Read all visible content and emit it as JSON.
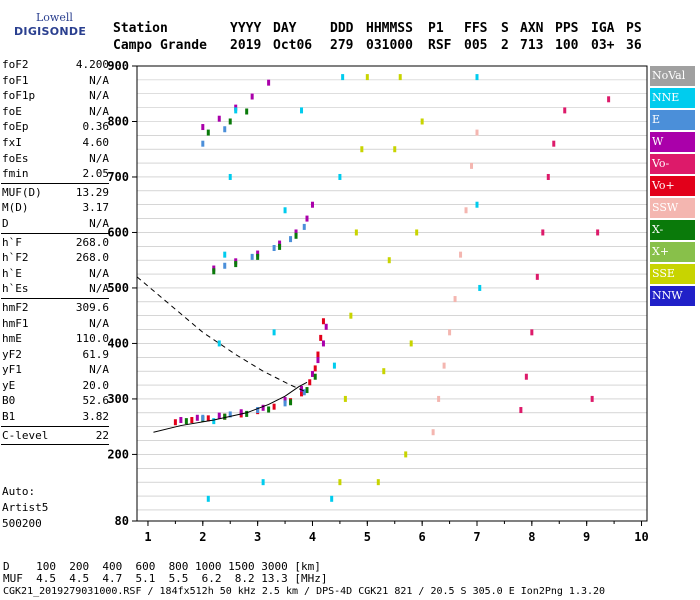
{
  "logo": {
    "line1": "Lowell",
    "line2": "DIGISONDE"
  },
  "header": {
    "row1": [
      "Station",
      "YYYY",
      "DAY",
      "DDD",
      "HHMMSS",
      "P1",
      "FFS",
      "S",
      "AXN",
      "PPS",
      "IGA",
      "PS"
    ],
    "row2": [
      "Campo Grande",
      "2019",
      "Oct06",
      "279",
      "031000",
      "RSF",
      "005",
      "2",
      "713",
      "100",
      "03+",
      "36"
    ]
  },
  "params": {
    "group1": [
      {
        "label": "foF2",
        "value": "4.200"
      },
      {
        "label": "foF1",
        "value": "N/A"
      },
      {
        "label": "foF1p",
        "value": "N/A"
      },
      {
        "label": "foE",
        "value": "N/A"
      },
      {
        "label": "foEp",
        "value": "0.36"
      },
      {
        "label": "fxI",
        "value": "4.60"
      },
      {
        "label": "foEs",
        "value": "N/A"
      },
      {
        "label": "fmin",
        "value": "2.05"
      }
    ],
    "group2": [
      {
        "label": "MUF(D)",
        "value": "13.29"
      },
      {
        "label": "M(D)",
        "value": "3.17"
      },
      {
        "label": "D",
        "value": "N/A"
      }
    ],
    "group3": [
      {
        "label": "h`F",
        "value": "268.0"
      },
      {
        "label": "h`F2",
        "value": "268.0"
      },
      {
        "label": "h`E",
        "value": "N/A"
      },
      {
        "label": "h`Es",
        "value": "N/A"
      }
    ],
    "group4": [
      {
        "label": "hmF2",
        "value": "309.6"
      },
      {
        "label": "hmF1",
        "value": "N/A"
      },
      {
        "label": "hmE",
        "value": "110.0"
      },
      {
        "label": "yF2",
        "value": "61.9"
      },
      {
        "label": "yF1",
        "value": "N/A"
      },
      {
        "label": "yE",
        "value": "20.0"
      },
      {
        "label": "B0",
        "value": "52.6"
      },
      {
        "label": "B1",
        "value": "3.82"
      }
    ],
    "group5": [
      {
        "label": "C-level",
        "value": "22"
      }
    ]
  },
  "auto": [
    "Auto:",
    "Artist5",
    "500200"
  ],
  "footer": {
    "d_row": "D    100  200  400  600  800 1000 1500 3000 [km]",
    "muf_row": "MUF  4.5  4.5  4.7  5.1  5.5  6.2  8.2 13.3 [MHz]",
    "info_row": "CGK21_2019279031000.RSF / 184fx512h 50 kHz 2.5 km / DPS-4D CGK21 821 / 20.5 S 305.0 E Ion2Png 1.3.20"
  },
  "legend": [
    {
      "label": "NoVal",
      "color": "#a0a0a0"
    },
    {
      "label": "NNE",
      "color": "#00ccee"
    },
    {
      "label": "E",
      "color": "#4b8fd9"
    },
    {
      "label": "W",
      "color": "#aa00aa"
    },
    {
      "label": "Vo-",
      "color": "#dd1a6a"
    },
    {
      "label": "Vo+",
      "color": "#e2001a"
    },
    {
      "label": "SSW",
      "color": "#f4b6b0"
    },
    {
      "label": "X-",
      "color": "#0a7a0a"
    },
    {
      "label": "X+",
      "color": "#88c04a"
    },
    {
      "label": "SSE",
      "color": "#c8d400"
    },
    {
      "label": "NNW",
      "color": "#2020c8"
    }
  ],
  "chart_data": {
    "type": "scatter",
    "title": "",
    "xlabel": "",
    "ylabel": "",
    "xlim": [
      0.8,
      10.1
    ],
    "ylim": [
      80,
      900
    ],
    "x_ticks": [
      1,
      2,
      3,
      4,
      5,
      6,
      7,
      8,
      9,
      10
    ],
    "y_ticks": [
      80,
      200,
      300,
      400,
      500,
      600,
      700,
      800,
      900
    ],
    "grid": "horizontal every 25 km",
    "series": [
      {
        "color": "#e2001a",
        "points": [
          [
            1.5,
            258
          ],
          [
            1.8,
            262
          ],
          [
            2.1,
            265
          ],
          [
            2.4,
            268
          ],
          [
            2.7,
            272
          ],
          [
            3.0,
            278
          ],
          [
            3.3,
            286
          ],
          [
            3.6,
            296
          ],
          [
            3.8,
            310
          ],
          [
            3.95,
            330
          ],
          [
            4.05,
            355
          ],
          [
            4.1,
            380
          ],
          [
            4.15,
            410
          ],
          [
            4.2,
            440
          ]
        ]
      },
      {
        "color": "#aa00aa",
        "points": [
          [
            1.6,
            262
          ],
          [
            1.9,
            266
          ],
          [
            2.3,
            270
          ],
          [
            2.7,
            276
          ],
          [
            3.1,
            284
          ],
          [
            3.5,
            298
          ],
          [
            3.8,
            318
          ],
          [
            4.0,
            345
          ],
          [
            4.1,
            370
          ],
          [
            4.2,
            400
          ],
          [
            4.25,
            430
          ],
          [
            2.2,
            535
          ],
          [
            2.6,
            548
          ],
          [
            3.0,
            562
          ],
          [
            3.4,
            580
          ],
          [
            3.7,
            600
          ],
          [
            3.9,
            625
          ],
          [
            4.0,
            650
          ],
          [
            2.0,
            790
          ],
          [
            2.3,
            805
          ],
          [
            2.6,
            825
          ],
          [
            2.9,
            845
          ],
          [
            3.2,
            870
          ]
        ]
      },
      {
        "color": "#0a7a0a",
        "points": [
          [
            1.7,
            260
          ],
          [
            2.0,
            264
          ],
          [
            2.4,
            268
          ],
          [
            2.8,
            273
          ],
          [
            3.2,
            281
          ],
          [
            3.6,
            294
          ],
          [
            3.9,
            316
          ],
          [
            4.05,
            340
          ],
          [
            2.2,
            530
          ],
          [
            2.6,
            543
          ],
          [
            3.0,
            556
          ],
          [
            3.4,
            574
          ],
          [
            3.7,
            594
          ],
          [
            2.1,
            780
          ],
          [
            2.5,
            800
          ],
          [
            2.8,
            818
          ]
        ]
      },
      {
        "color": "#4b8fd9",
        "points": [
          [
            2.0,
            266
          ],
          [
            2.5,
            272
          ],
          [
            3.0,
            280
          ],
          [
            3.5,
            292
          ],
          [
            3.85,
            312
          ],
          [
            2.4,
            540
          ],
          [
            2.9,
            556
          ],
          [
            3.3,
            572
          ],
          [
            3.6,
            588
          ],
          [
            3.85,
            610
          ],
          [
            2.0,
            760
          ],
          [
            2.4,
            786
          ]
        ]
      },
      {
        "color": "#00ccee",
        "points": [
          [
            2.1,
            120
          ],
          [
            2.2,
            260
          ],
          [
            2.3,
            400
          ],
          [
            2.4,
            560
          ],
          [
            2.5,
            700
          ],
          [
            2.6,
            820
          ],
          [
            3.1,
            150
          ],
          [
            3.3,
            420
          ],
          [
            3.5,
            640
          ],
          [
            3.8,
            820
          ],
          [
            4.35,
            120
          ],
          [
            4.4,
            360
          ],
          [
            4.5,
            700
          ],
          [
            4.55,
            880
          ],
          [
            7.0,
            650
          ],
          [
            7.05,
            500
          ],
          [
            7.0,
            880
          ]
        ]
      },
      {
        "color": "#c8d400",
        "points": [
          [
            4.5,
            150
          ],
          [
            4.6,
            300
          ],
          [
            4.7,
            450
          ],
          [
            4.8,
            600
          ],
          [
            4.9,
            750
          ],
          [
            5.0,
            880
          ],
          [
            5.2,
            150
          ],
          [
            5.3,
            350
          ],
          [
            5.4,
            550
          ],
          [
            5.5,
            750
          ],
          [
            5.6,
            880
          ],
          [
            5.7,
            200
          ],
          [
            5.8,
            400
          ],
          [
            5.9,
            600
          ],
          [
            6.0,
            800
          ]
        ]
      },
      {
        "color": "#f4b6b0",
        "points": [
          [
            6.2,
            240
          ],
          [
            6.3,
            300
          ],
          [
            6.4,
            360
          ],
          [
            6.5,
            420
          ],
          [
            6.6,
            480
          ],
          [
            6.7,
            560
          ],
          [
            6.8,
            640
          ],
          [
            6.9,
            720
          ],
          [
            7.0,
            780
          ]
        ]
      },
      {
        "color": "#dd1a6a",
        "points": [
          [
            7.8,
            280
          ],
          [
            7.9,
            340
          ],
          [
            8.0,
            420
          ],
          [
            8.1,
            520
          ],
          [
            8.2,
            600
          ],
          [
            8.3,
            700
          ],
          [
            8.4,
            760
          ],
          [
            8.6,
            820
          ],
          [
            9.1,
            300
          ],
          [
            9.2,
            600
          ],
          [
            9.4,
            840
          ]
        ]
      },
      {
        "color": "#000000",
        "name": "",
        "points": [
          [
            1.1,
            240
          ],
          [
            1.6,
            252
          ],
          [
            2.2,
            262
          ],
          [
            2.8,
            275
          ],
          [
            3.2,
            290
          ],
          [
            3.5,
            305
          ],
          [
            3.75,
            322
          ],
          [
            3.9,
            330
          ]
        ]
      }
    ]
  }
}
